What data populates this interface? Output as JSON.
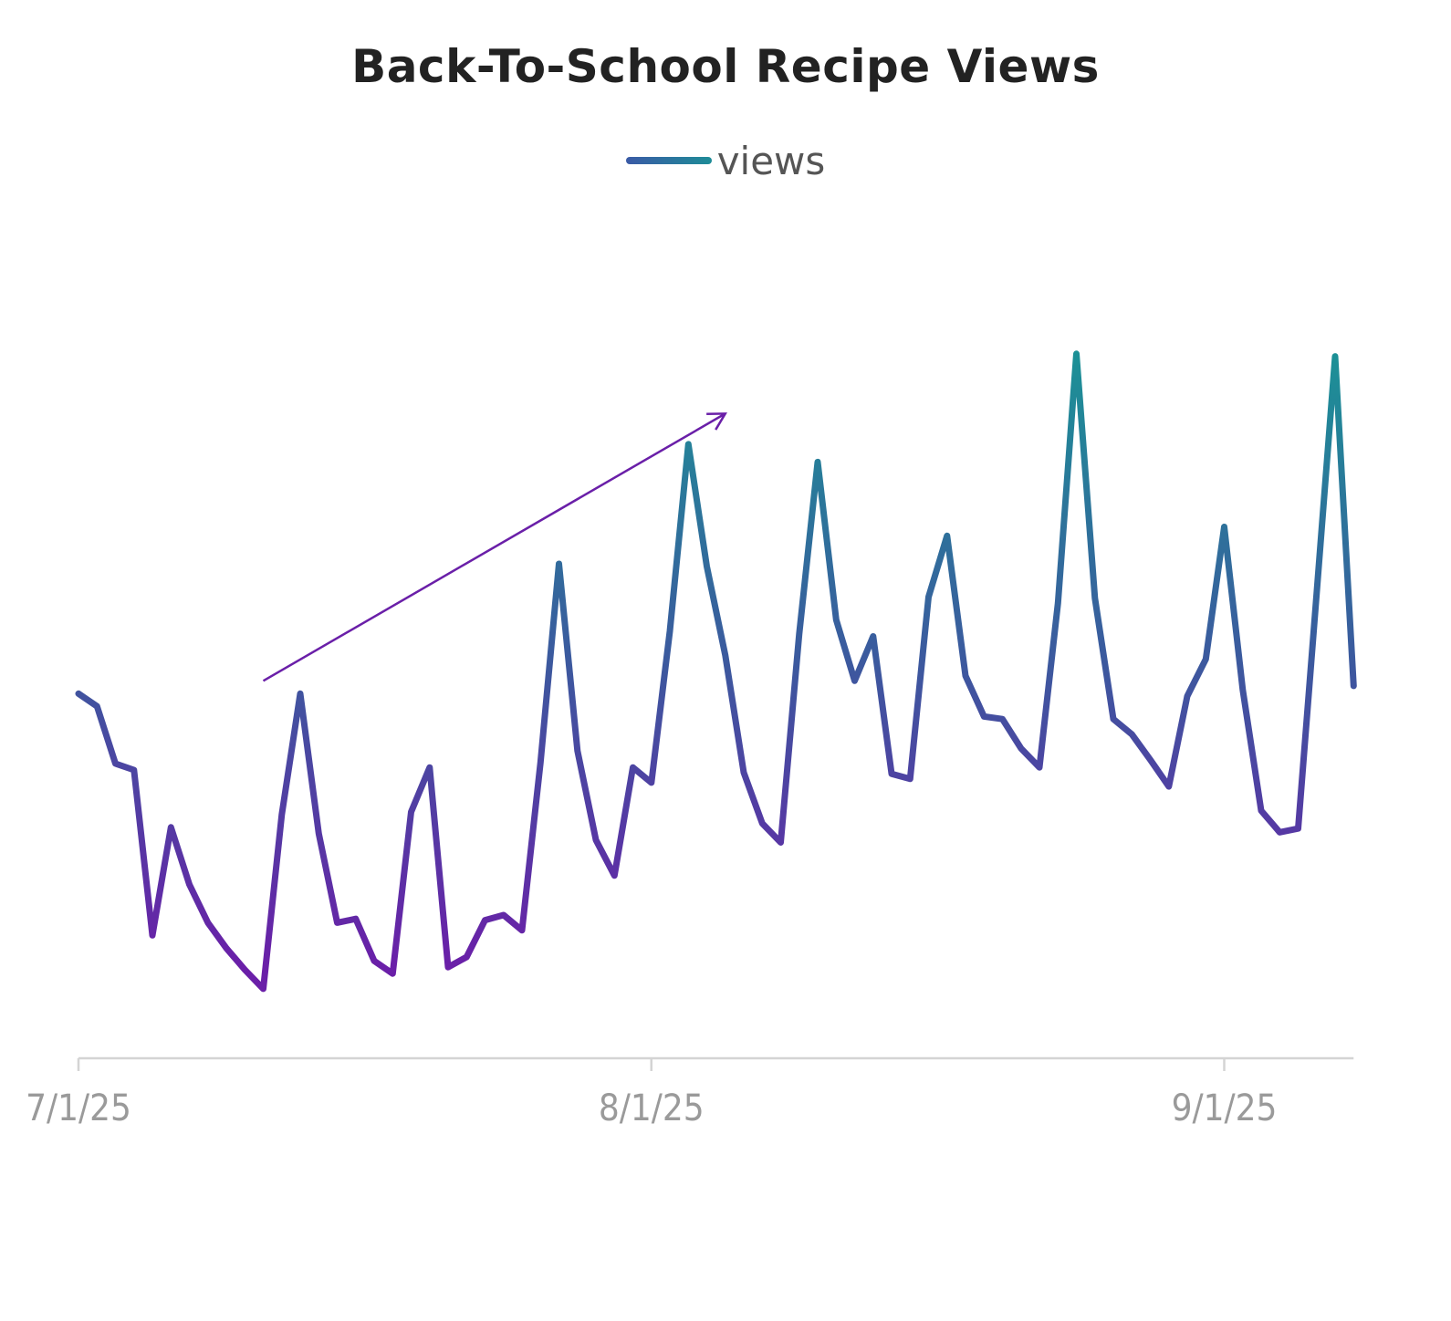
{
  "chart_data": {
    "type": "line",
    "title": "Back-To-School Recipe Views",
    "xlabel": "",
    "ylabel": "",
    "x_start": "2025-07-01",
    "x_tick_labels": [
      "7/1/25",
      "8/1/25",
      "9/1/25"
    ],
    "x_tick_dates": [
      "2025-07-01",
      "2025-08-01",
      "2025-09-01"
    ],
    "legend": "top-center",
    "grid": false,
    "series": [
      {
        "name": "views",
        "x": [
          "2025-07-01",
          "2025-07-02",
          "2025-07-03",
          "2025-07-04",
          "2025-07-05",
          "2025-07-06",
          "2025-07-07",
          "2025-07-08",
          "2025-07-09",
          "2025-07-10",
          "2025-07-11",
          "2025-07-12",
          "2025-07-13",
          "2025-07-14",
          "2025-07-15",
          "2025-07-16",
          "2025-07-17",
          "2025-07-18",
          "2025-07-19",
          "2025-07-20",
          "2025-07-21",
          "2025-07-22",
          "2025-07-23",
          "2025-07-24",
          "2025-07-25",
          "2025-07-26",
          "2025-07-27",
          "2025-07-28",
          "2025-07-29",
          "2025-07-30",
          "2025-07-31",
          "2025-08-01",
          "2025-08-02",
          "2025-08-03",
          "2025-08-04",
          "2025-08-05",
          "2025-08-06",
          "2025-08-07",
          "2025-08-08",
          "2025-08-09",
          "2025-08-10",
          "2025-08-11",
          "2025-08-12",
          "2025-08-13",
          "2025-08-14",
          "2025-08-15",
          "2025-08-16",
          "2025-08-17",
          "2025-08-18",
          "2025-08-19",
          "2025-08-20",
          "2025-08-21",
          "2025-08-22",
          "2025-08-23",
          "2025-08-24",
          "2025-08-25",
          "2025-08-26",
          "2025-08-27",
          "2025-08-28",
          "2025-08-29",
          "2025-08-30",
          "2025-08-31",
          "2025-09-01",
          "2025-09-02",
          "2025-09-03",
          "2025-09-04",
          "2025-09-05",
          "2025-09-06",
          "2025-09-07",
          "2025-09-08"
        ],
        "values": [
          470,
          460,
          415,
          410,
          280,
          365,
          320,
          290,
          270,
          253,
          238,
          375,
          470,
          360,
          290,
          293,
          260,
          250,
          377,
          412,
          255,
          263,
          292,
          296,
          284,
          416,
          572,
          425,
          355,
          327,
          412,
          400,
          519,
          666,
          570,
          500,
          408,
          368,
          353,
          517,
          652,
          528,
          480,
          515,
          407,
          403,
          546,
          594,
          484,
          452,
          450,
          427,
          412,
          541,
          737,
          545,
          450,
          438,
          418,
          397,
          468,
          497,
          601,
          473,
          378,
          361,
          364,
          549,
          735,
          476
        ]
      }
    ],
    "annotations": [
      {
        "type": "trend-arrow",
        "from": [
          "2025-07-11",
          480
        ],
        "to": [
          "2025-08-05",
          690
        ]
      }
    ]
  }
}
